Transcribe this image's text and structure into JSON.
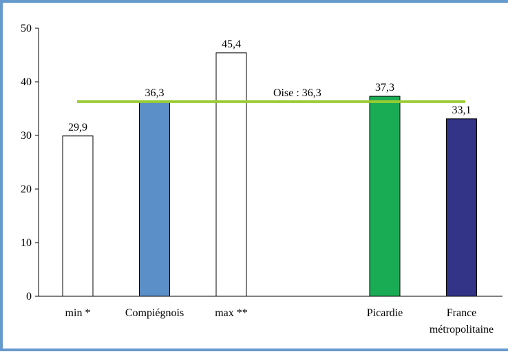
{
  "colors": {
    "frame_border": "#6699cc",
    "axis": "#000000",
    "reference_line": "#99cc33"
  },
  "chart_data": {
    "type": "bar",
    "title": "",
    "xlabel": "",
    "ylabel": "",
    "ylim": [
      0,
      50
    ],
    "yticks": [
      0,
      10,
      20,
      30,
      40,
      50
    ],
    "grid": false,
    "bars": [
      {
        "label": "min *",
        "value": 29.9,
        "value_label": "29,9",
        "color": "#ffffff",
        "position": 0
      },
      {
        "label": "Compiégnois",
        "value": 36.3,
        "value_label": "36,3",
        "color": "#5b8fc7",
        "position": 1
      },
      {
        "label": "max **",
        "value": 45.4,
        "value_label": "45,4",
        "color": "#ffffff",
        "position": 2
      },
      {
        "label": "Picardie",
        "value": 37.3,
        "value_label": "37,3",
        "color": "#1aab55",
        "position": 4
      },
      {
        "label": "France\nmétropolitaine",
        "value": 33.1,
        "value_label": "33,1",
        "color": "#333388",
        "position": 5
      }
    ],
    "reference_line": {
      "label": "Oise : 36,3",
      "value": 36.3,
      "color": "#99cc33"
    }
  }
}
